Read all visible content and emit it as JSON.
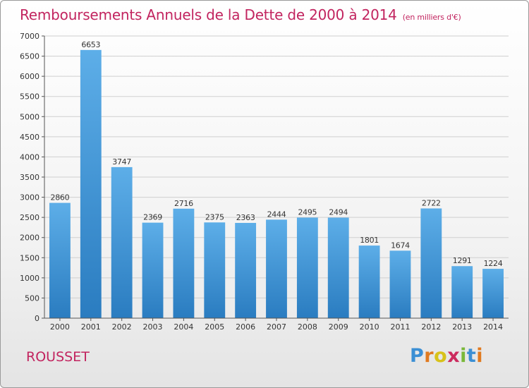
{
  "title": "Remboursements Annuels de la Dette de 2000 à 2014",
  "unit_note": "(en milliers d'€)",
  "commune": "ROUSSET",
  "logo": {
    "text": "Proxiti",
    "letters": [
      {
        "ch": "P",
        "color": "#3b8fd4"
      },
      {
        "ch": "r",
        "color": "#e07a20"
      },
      {
        "ch": "o",
        "color": "#d8c21a"
      },
      {
        "ch": "x",
        "color": "#cc2b5e"
      },
      {
        "ch": "i",
        "color": "#7ab83a"
      },
      {
        "ch": "t",
        "color": "#3b8fd4"
      },
      {
        "ch": "i",
        "color": "#e07a20"
      }
    ]
  },
  "colors": {
    "bar_light": "#5daee8",
    "bar_dark": "#2a7cc0",
    "title": "#c2245f"
  },
  "chart_data": {
    "type": "bar",
    "title": "Remboursements Annuels de la Dette de 2000 à 2014",
    "xlabel": "",
    "ylabel": "(en milliers d'€)",
    "ylim": [
      0,
      7000
    ],
    "yticks": [
      0,
      500,
      1000,
      1500,
      2000,
      2500,
      3000,
      3500,
      4000,
      4500,
      5000,
      5500,
      6000,
      6500,
      7000
    ],
    "grid": true,
    "categories": [
      "2000",
      "2001",
      "2002",
      "2003",
      "2004",
      "2005",
      "2006",
      "2007",
      "2008",
      "2009",
      "2010",
      "2011",
      "2012",
      "2013",
      "2014"
    ],
    "values": [
      2860,
      6653,
      3747,
      2369,
      2716,
      2375,
      2363,
      2444,
      2495,
      2494,
      1801,
      1674,
      2722,
      1291,
      1224
    ]
  }
}
